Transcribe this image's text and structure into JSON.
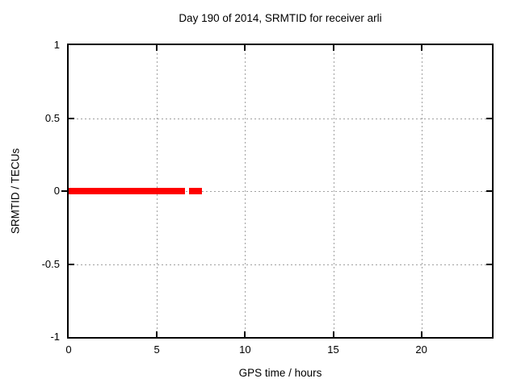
{
  "window": {
    "background": "#ffffff"
  },
  "chart_data": {
    "type": "line",
    "title": "Day 190 of 2014, SRMTID for receiver arli",
    "xlabel": "GPS time / hours",
    "ylabel": "SRMTID / TECUs",
    "xlim": [
      0,
      24
    ],
    "ylim": [
      -1,
      1
    ],
    "grid": true,
    "legend": false,
    "xticks": [
      {
        "value": 0,
        "label": "0"
      },
      {
        "value": 5,
        "label": "5"
      },
      {
        "value": 10,
        "label": "10"
      },
      {
        "value": 15,
        "label": "15"
      },
      {
        "value": 20,
        "label": "20"
      }
    ],
    "yticks": [
      {
        "value": 1,
        "label": "1"
      },
      {
        "value": 0.5,
        "label": "0.5"
      },
      {
        "value": 0,
        "label": "0"
      },
      {
        "value": -0.5,
        "label": "-0.5"
      },
      {
        "value": -1,
        "label": "-1"
      }
    ],
    "series": [
      {
        "name": "SRMTID",
        "color": "#ff0000",
        "style": "thick-horizontal-points",
        "y": 0,
        "segments": [
          {
            "x_start": 0,
            "x_end": 6.58
          },
          {
            "x_start": 6.81,
            "x_end": 7.54
          }
        ]
      }
    ],
    "colors": {
      "data": "#ff0000",
      "grid": "#a0a0a0",
      "axis": "#000000",
      "background": "#ffffff"
    }
  }
}
